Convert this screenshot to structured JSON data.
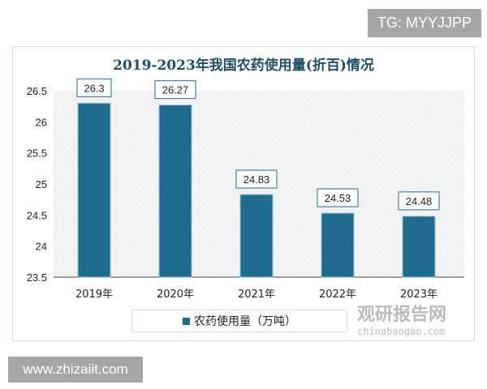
{
  "watermarks": {
    "top_right": "TG: MYYJJPP",
    "bottom_left": "www.zhizaiit.com",
    "logo_cn": "观研报告网",
    "logo_en": "chinabaogao.com"
  },
  "chart_data": {
    "type": "bar",
    "title": "2019-2023年我国农药使用量(折百)情况",
    "categories": [
      "2019年",
      "2020年",
      "2021年",
      "2022年",
      "2023年"
    ],
    "series": [
      {
        "name": "农药使用量（万吨）",
        "values": [
          26.3,
          26.27,
          24.83,
          24.53,
          24.48
        ]
      }
    ],
    "data_labels": [
      "26.3",
      "26.27",
      "24.83",
      "24.53",
      "24.48"
    ],
    "ylim": [
      23.5,
      26.5
    ],
    "yticks": [
      "23.5",
      "24",
      "24.5",
      "25",
      "25.5",
      "26",
      "26.5"
    ],
    "xlabel": "",
    "ylabel": "",
    "legend": "bottom",
    "grid": false,
    "colors": {
      "bar": "#1f6b8e",
      "label_border": "#1f6b8e"
    }
  }
}
